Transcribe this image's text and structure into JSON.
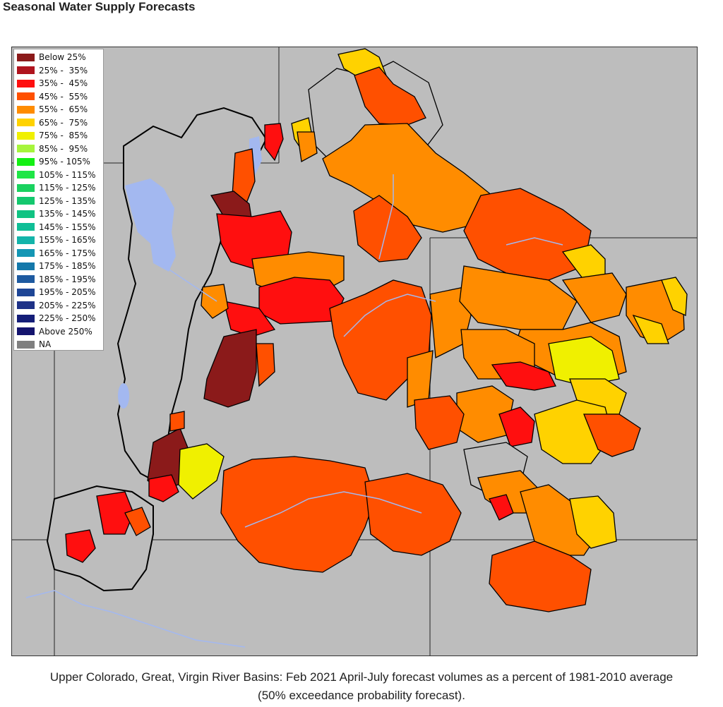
{
  "page": {
    "title": "Seasonal Water Supply Forecasts",
    "caption_line1": "Upper Colorado, Great, Virgin River Basins: Feb 2021 April-July forecast volumes as a percent of 1981-2010 average",
    "caption_line2": "(50% exceedance probability forecast)."
  },
  "legend": {
    "items": [
      {
        "label": "Below 25%",
        "color": "#8b1a1a"
      },
      {
        "label": "25% -  35%",
        "color": "#b0141e"
      },
      {
        "label": "35% -  45%",
        "color": "#ff0f0f"
      },
      {
        "label": "45% -  55%",
        "color": "#ff5000"
      },
      {
        "label": "55% -  65%",
        "color": "#ff8c00"
      },
      {
        "label": "65% -  75%",
        "color": "#ffd200"
      },
      {
        "label": "75% -  85%",
        "color": "#f0f000"
      },
      {
        "label": "85% -  95%",
        "color": "#a6f53c"
      },
      {
        "label": "95% - 105%",
        "color": "#14f014"
      },
      {
        "label": "105% - 115%",
        "color": "#1ee646"
      },
      {
        "label": "115% - 125%",
        "color": "#19d25f"
      },
      {
        "label": "125% - 135%",
        "color": "#14c86e"
      },
      {
        "label": "135% - 145%",
        "color": "#10c382"
      },
      {
        "label": "145% - 155%",
        "color": "#0fbe96"
      },
      {
        "label": "155% - 165%",
        "color": "#14b4aa"
      },
      {
        "label": "165% - 175%",
        "color": "#1496b4"
      },
      {
        "label": "175% - 185%",
        "color": "#1478aa"
      },
      {
        "label": "185% - 195%",
        "color": "#1e5aa0"
      },
      {
        "label": "195% - 205%",
        "color": "#1e4696"
      },
      {
        "label": "205% - 225%",
        "color": "#1e3287"
      },
      {
        "label": "225% - 250%",
        "color": "#141e78"
      },
      {
        "label": "Above 250%",
        "color": "#14146e"
      },
      {
        "label": "NA",
        "color": "#7f7f7f"
      }
    ]
  },
  "map": {
    "background_color": "#bdbdbd",
    "water_color": "#a3b8f0",
    "boundary_color": "#000000"
  }
}
